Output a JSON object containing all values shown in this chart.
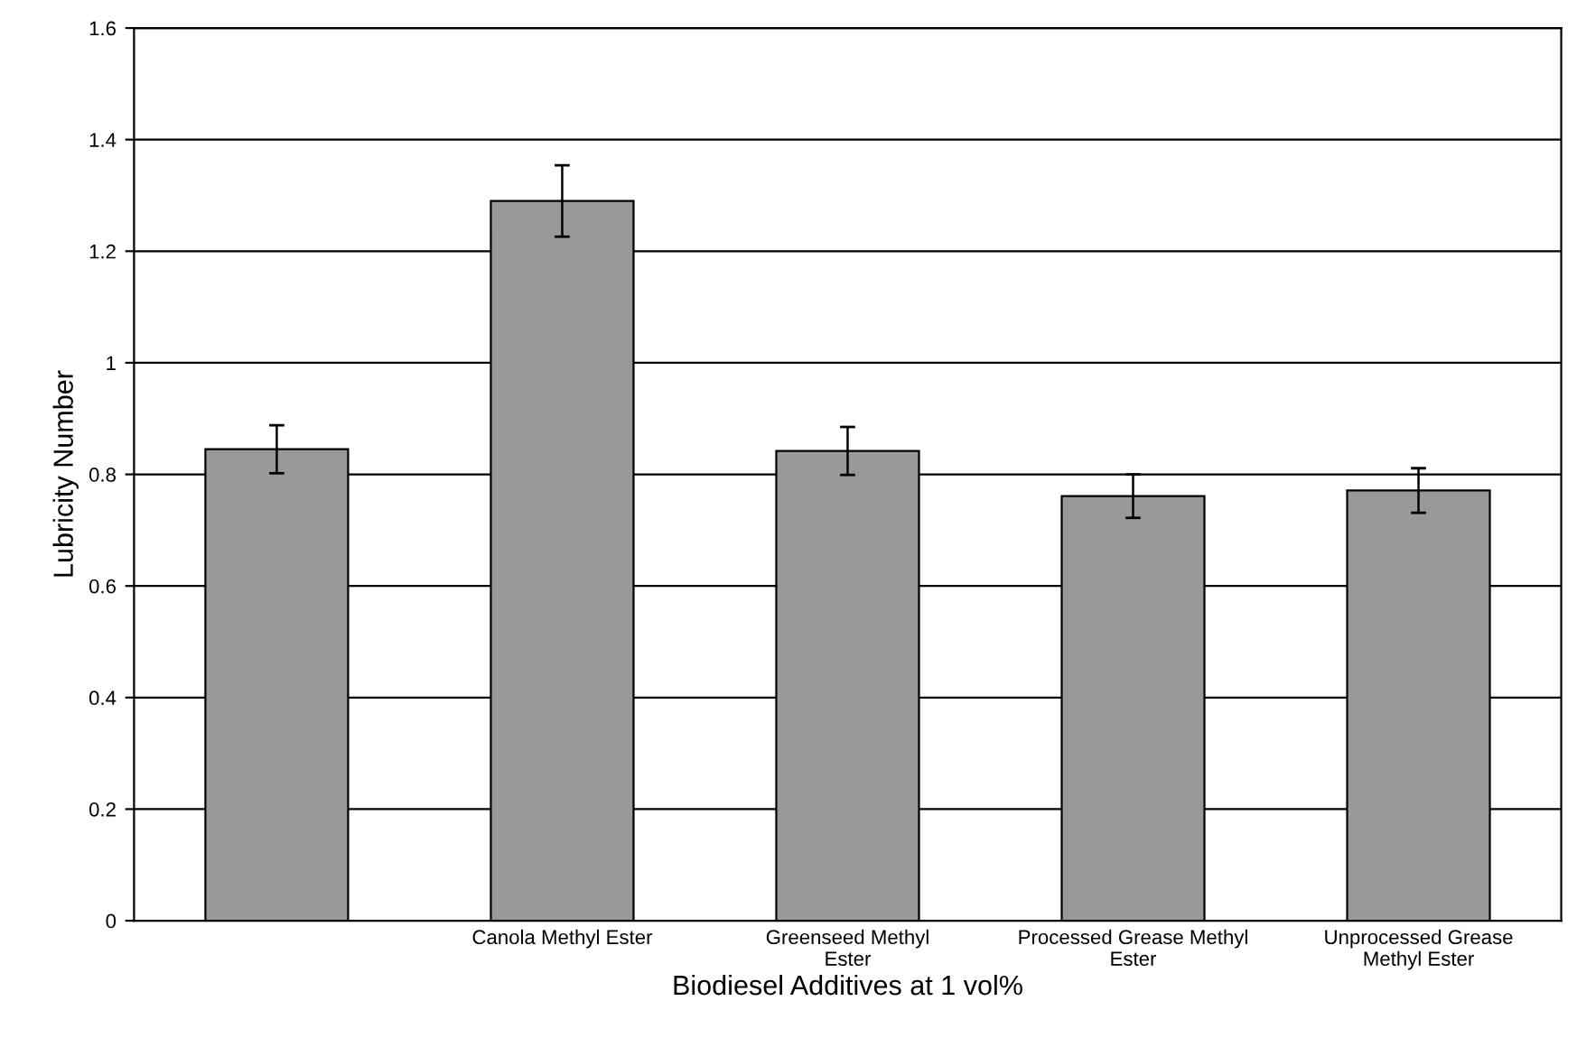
{
  "chart_data": {
    "type": "bar",
    "categories": [
      null,
      "Canola Methyl Ester",
      "Greenseed Methyl\nEster",
      "Processed Grease Methyl\nEster",
      "Unprocessed Grease\nMethyl Ester"
    ],
    "values": [
      0.845,
      1.29,
      0.842,
      0.761,
      0.771
    ],
    "errors": [
      0.043,
      0.064,
      0.043,
      0.039,
      0.04
    ],
    "color": "#999999",
    "xlabel": "Biodiesel Additives at 1 vol%",
    "ylabel": "Lubricity Number",
    "ylim": [
      0,
      1.6
    ],
    "yticks": [
      0,
      0.2,
      0.4,
      0.6,
      0.8,
      1,
      1.2,
      1.4,
      1.6
    ],
    "grid": "y",
    "legend": false
  }
}
